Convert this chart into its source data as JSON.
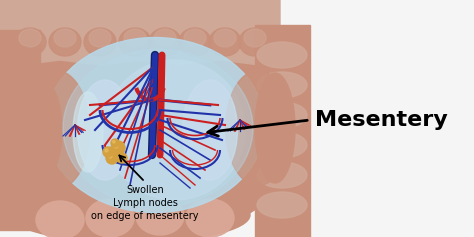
{
  "fig_width": 4.74,
  "fig_height": 2.37,
  "dpi": 100,
  "mesentery_label": "Mesentery",
  "mesentery_label_fontsize": 16,
  "mesentery_label_fontweight": "bold",
  "mesentery_label_color": "#000000",
  "swollen_label": "Swollen\nLymph nodes\non edge of mesentery",
  "swollen_label_fontsize": 7,
  "swollen_label_color": "#000000",
  "arrow_color": "#000000",
  "bg_white": "#f5f5f5",
  "colon_pink": "#c8907a",
  "colon_dark": "#b87060",
  "mesentery_blue": "#b8d8e8",
  "mesentery_blue2": "#c8dded",
  "vessel_red": "#cc2020",
  "vessel_blue": "#2233aa",
  "vessel_dark_blue": "#112266",
  "lymph_orange": "#d4a040",
  "skin_light": "#dba898",
  "top_colon_light": "#d0a898"
}
